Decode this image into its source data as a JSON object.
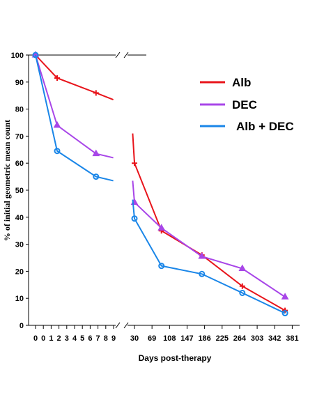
{
  "chart_data": {
    "type": "line",
    "title": "",
    "xlabel": "Days post-therapy",
    "ylabel": "% of initial geometric mean count",
    "ylim": [
      0,
      100
    ],
    "yticks": [
      "0",
      "10",
      "20",
      "30",
      "40",
      "50",
      "60",
      "70",
      "80",
      "90",
      "100"
    ],
    "broken_x_axis": true,
    "xticks_left": [
      "0",
      "0",
      "1",
      "2",
      "3",
      "4",
      "5",
      "6",
      "7",
      "8",
      "9"
    ],
    "xticks_right": [
      "30",
      "69",
      "108",
      "147",
      "186",
      "225",
      "264",
      "303",
      "342",
      "381"
    ],
    "grid": false,
    "legend_position": "top-right",
    "series": [
      {
        "name": "Alb",
        "color": "#e8141b",
        "marker": "plus",
        "points_left": [
          [
            0,
            100
          ],
          [
            2.5,
            91.5
          ],
          [
            7,
            86
          ],
          [
            9,
            83.5
          ]
        ],
        "points_right": [
          [
            26,
            71
          ],
          [
            30,
            60
          ],
          [
            90,
            35
          ],
          [
            180,
            26
          ],
          [
            270,
            14.5
          ],
          [
            365,
            5.5
          ]
        ]
      },
      {
        "name": "DEC",
        "color": "#a846e8",
        "marker": "triangle",
        "points_left": [
          [
            0,
            100
          ],
          [
            2.5,
            74
          ],
          [
            7,
            63.5
          ],
          [
            9,
            62
          ]
        ],
        "points_right": [
          [
            26,
            53.5
          ],
          [
            30,
            45.5
          ],
          [
            90,
            36
          ],
          [
            180,
            25.5
          ],
          [
            270,
            21
          ],
          [
            365,
            10.5
          ]
        ]
      },
      {
        "name": "Alb + DEC",
        "color": "#1a86e8",
        "marker": "circle",
        "points_left": [
          [
            0,
            100
          ],
          [
            2.5,
            64.5
          ],
          [
            7,
            55
          ],
          [
            9,
            53.5
          ]
        ],
        "points_right": [
          [
            26,
            46.5
          ],
          [
            30,
            39.5
          ],
          [
            90,
            22
          ],
          [
            180,
            19
          ],
          [
            270,
            12
          ],
          [
            365,
            4.5
          ]
        ]
      }
    ]
  }
}
